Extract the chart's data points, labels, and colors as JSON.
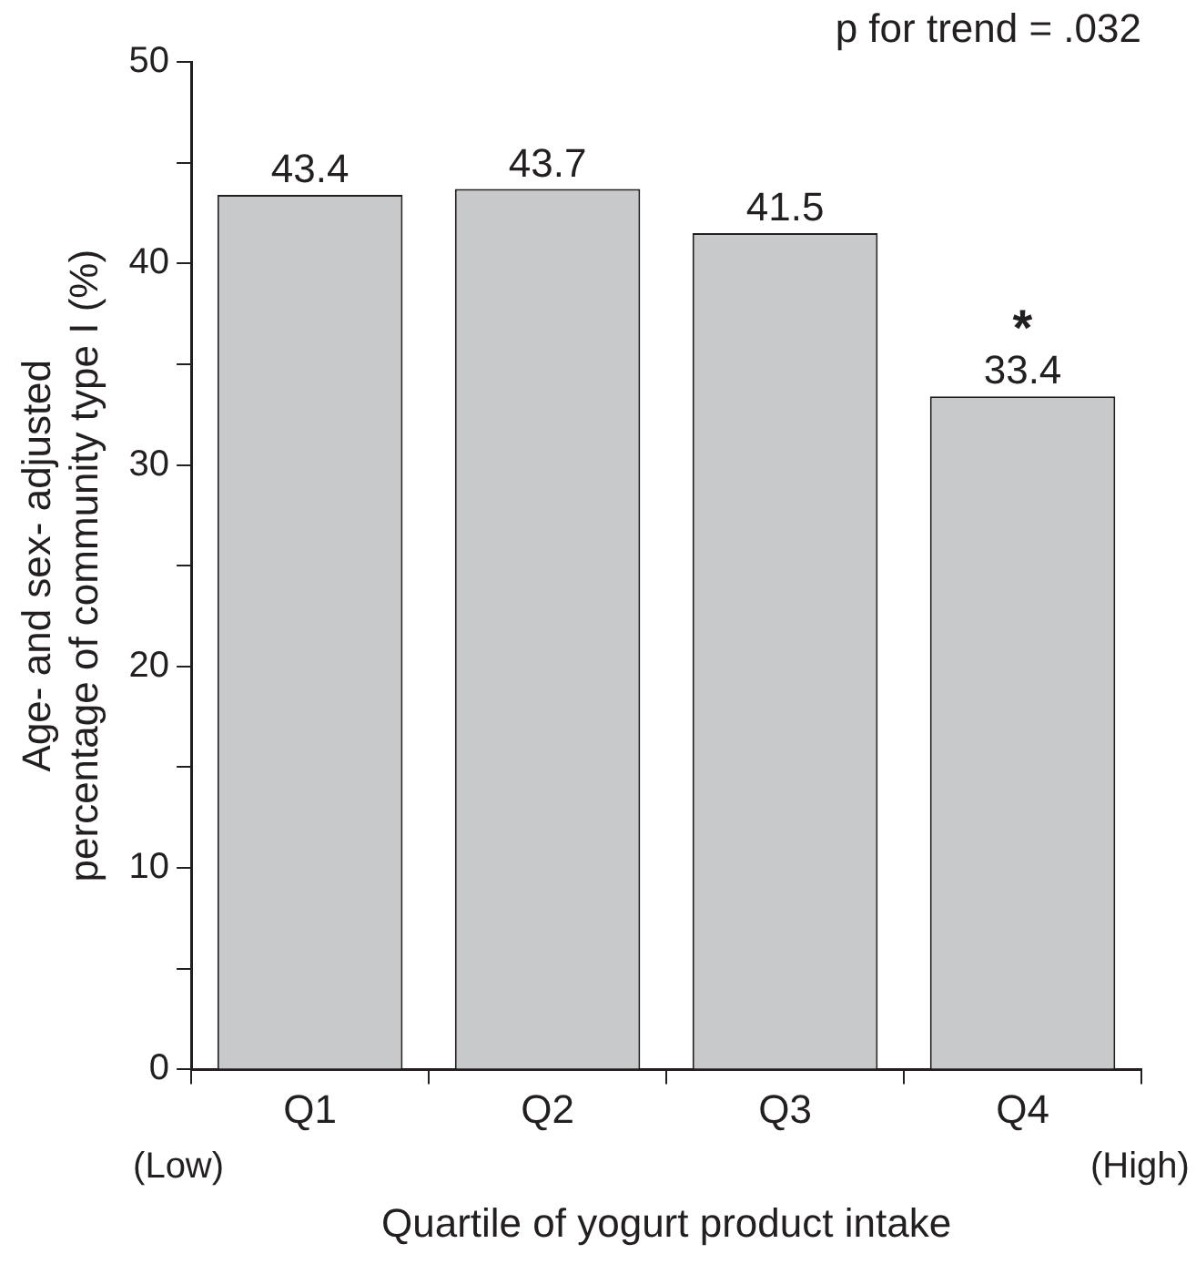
{
  "chart_data": {
    "type": "bar",
    "xlabel": "Quartile of yogurt product intake",
    "ylabel": "Age- and sex- adjusted\npercentage of community type I (%)",
    "categories": [
      "Q1",
      "Q2",
      "Q3",
      "Q4"
    ],
    "values": [
      43.4,
      43.7,
      41.5,
      33.4
    ],
    "color": "#c8c9cb",
    "data_labels": true,
    "ylim": [
      0,
      50
    ],
    "yticks": [
      0,
      {
        "value": 5,
        "label": null
      },
      10,
      {
        "value": 15,
        "label": null
      },
      20,
      {
        "value": 25,
        "label": null
      },
      30,
      {
        "value": 35,
        "label": null
      },
      40,
      {
        "value": 45,
        "label": null
      },
      50
    ],
    "grid": false,
    "legend": false,
    "annotations": [
      "p for trend = .032",
      "(Low)",
      "(High)",
      {
        "text": "*",
        "x": "Q4",
        "y": 33.4
      }
    ]
  }
}
